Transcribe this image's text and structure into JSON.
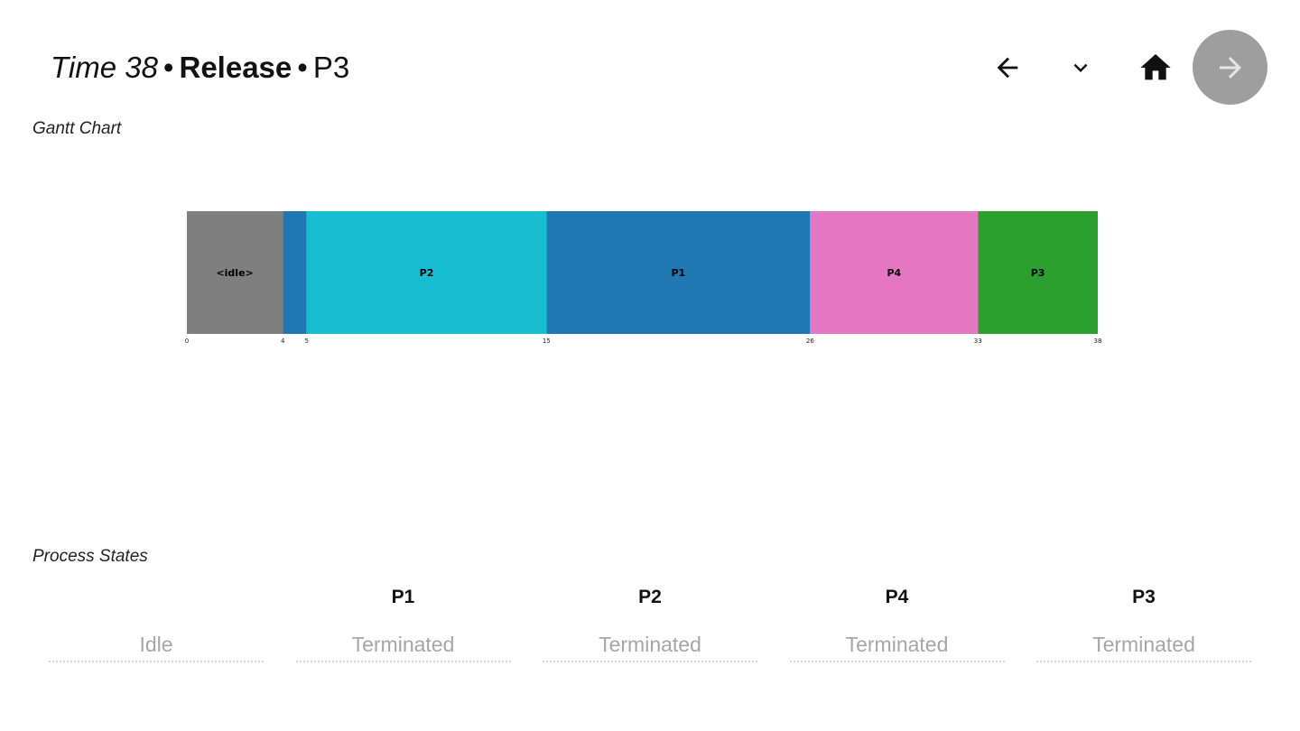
{
  "header": {
    "time": "Time 38",
    "separator": "•",
    "event": "Release",
    "process": "P3"
  },
  "nav": {
    "back_icon": "arrow-left-icon",
    "dropdown_icon": "chevron-down-icon",
    "home_icon": "home-icon",
    "next_icon": "arrow-right-icon"
  },
  "gantt": {
    "label": "Gantt Chart"
  },
  "chart_data": {
    "type": "bar",
    "orientation": "horizontal-timeline",
    "x_range": [
      0,
      38
    ],
    "segments": [
      {
        "label": "<idle>",
        "start": 0,
        "end": 4,
        "color": "#7f7f7f"
      },
      {
        "label": "",
        "start": 4,
        "end": 5,
        "color": "#1f77b4"
      },
      {
        "label": "P2",
        "start": 5,
        "end": 15,
        "color": "#17becf"
      },
      {
        "label": "P1",
        "start": 15,
        "end": 26,
        "color": "#1f77b4"
      },
      {
        "label": "P4",
        "start": 26,
        "end": 33,
        "color": "#e377c2"
      },
      {
        "label": "P3",
        "start": 33,
        "end": 38,
        "color": "#2ca02c"
      }
    ],
    "ticks": [
      "0",
      "4",
      "5",
      "15",
      "26",
      "33",
      "38"
    ]
  },
  "states": {
    "label": "Process States",
    "columns": [
      {
        "name": "",
        "state": "Idle"
      },
      {
        "name": "P1",
        "state": "Terminated"
      },
      {
        "name": "P2",
        "state": "Terminated"
      },
      {
        "name": "P4",
        "state": "Terminated"
      },
      {
        "name": "P3",
        "state": "Terminated"
      }
    ]
  }
}
